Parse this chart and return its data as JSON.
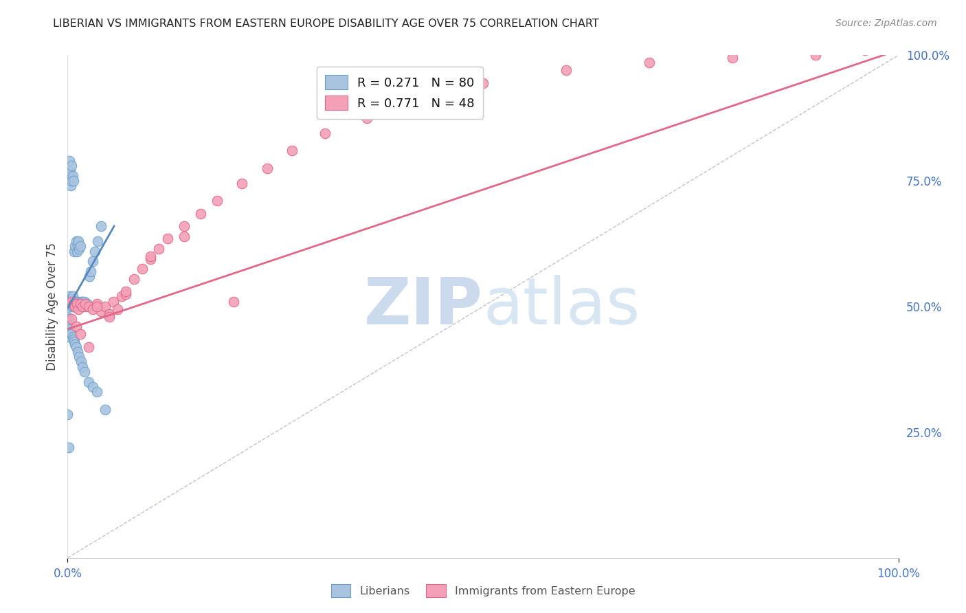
{
  "title": "LIBERIAN VS IMMIGRANTS FROM EASTERN EUROPE DISABILITY AGE OVER 75 CORRELATION CHART",
  "source": "Source: ZipAtlas.com",
  "ylabel": "Disability Age Over 75",
  "xlim": [
    0.0,
    1.0
  ],
  "ylim": [
    0.0,
    1.0
  ],
  "x_ticks": [
    0.0,
    1.0
  ],
  "x_tick_labels": [
    "0.0%",
    "100.0%"
  ],
  "y_tick_vals_right": [
    0.25,
    0.5,
    0.75,
    1.0
  ],
  "y_tick_labels_right": [
    "25.0%",
    "50.0%",
    "75.0%",
    "100.0%"
  ],
  "watermark_text": "ZIPatlas",
  "legend_line1": "R = 0.271   N = 80",
  "legend_line2": "R = 0.771   N = 48",
  "liberian_color": "#a8c4e0",
  "liberian_edge": "#6fa0cc",
  "eastern_europe_color": "#f4a0b8",
  "eastern_europe_edge": "#e06888",
  "liberian_trend_color": "#5588bb",
  "eastern_europe_trend_color": "#e06888",
  "diagonal_color": "#bbbbcc",
  "grid_color": "#dddddd",
  "background_color": "#ffffff",
  "liberian_x": [
    0.001,
    0.001,
    0.002,
    0.002,
    0.002,
    0.002,
    0.003,
    0.003,
    0.003,
    0.003,
    0.004,
    0.004,
    0.004,
    0.005,
    0.005,
    0.005,
    0.005,
    0.006,
    0.006,
    0.006,
    0.006,
    0.007,
    0.007,
    0.007,
    0.008,
    0.008,
    0.008,
    0.009,
    0.009,
    0.009,
    0.01,
    0.01,
    0.01,
    0.011,
    0.011,
    0.012,
    0.012,
    0.013,
    0.013,
    0.014,
    0.015,
    0.015,
    0.016,
    0.017,
    0.018,
    0.019,
    0.02,
    0.021,
    0.022,
    0.024,
    0.026,
    0.028,
    0.03,
    0.033,
    0.036,
    0.04,
    0.0,
    0.0,
    0.001,
    0.001,
    0.002,
    0.003,
    0.004,
    0.005,
    0.006,
    0.007,
    0.008,
    0.009,
    0.01,
    0.012,
    0.014,
    0.016,
    0.018,
    0.02,
    0.025,
    0.03,
    0.035,
    0.045,
    0.0,
    0.001
  ],
  "liberian_y": [
    0.51,
    0.76,
    0.51,
    0.52,
    0.76,
    0.79,
    0.505,
    0.515,
    0.76,
    0.77,
    0.5,
    0.51,
    0.74,
    0.505,
    0.515,
    0.75,
    0.78,
    0.5,
    0.51,
    0.52,
    0.76,
    0.505,
    0.51,
    0.75,
    0.5,
    0.51,
    0.61,
    0.505,
    0.51,
    0.62,
    0.5,
    0.51,
    0.63,
    0.505,
    0.61,
    0.5,
    0.62,
    0.51,
    0.63,
    0.615,
    0.505,
    0.62,
    0.51,
    0.505,
    0.51,
    0.5,
    0.51,
    0.505,
    0.5,
    0.505,
    0.56,
    0.57,
    0.59,
    0.61,
    0.63,
    0.66,
    0.48,
    0.44,
    0.475,
    0.465,
    0.46,
    0.455,
    0.45,
    0.445,
    0.44,
    0.435,
    0.43,
    0.425,
    0.42,
    0.41,
    0.4,
    0.39,
    0.38,
    0.37,
    0.35,
    0.34,
    0.33,
    0.295,
    0.285,
    0.22
  ],
  "eastern_europe_x": [
    0.005,
    0.007,
    0.009,
    0.011,
    0.013,
    0.015,
    0.018,
    0.021,
    0.025,
    0.03,
    0.035,
    0.04,
    0.045,
    0.05,
    0.055,
    0.06,
    0.065,
    0.07,
    0.08,
    0.09,
    0.1,
    0.11,
    0.12,
    0.14,
    0.16,
    0.18,
    0.21,
    0.24,
    0.27,
    0.31,
    0.36,
    0.42,
    0.5,
    0.6,
    0.7,
    0.8,
    0.9,
    0.96,
    0.005,
    0.01,
    0.015,
    0.025,
    0.035,
    0.05,
    0.07,
    0.1,
    0.14,
    0.2
  ],
  "eastern_europe_y": [
    0.51,
    0.505,
    0.5,
    0.505,
    0.495,
    0.505,
    0.5,
    0.505,
    0.5,
    0.495,
    0.505,
    0.49,
    0.5,
    0.485,
    0.51,
    0.495,
    0.52,
    0.525,
    0.555,
    0.575,
    0.595,
    0.615,
    0.635,
    0.66,
    0.685,
    0.71,
    0.745,
    0.775,
    0.81,
    0.845,
    0.875,
    0.91,
    0.945,
    0.97,
    0.985,
    0.995,
    1.0,
    1.01,
    0.475,
    0.46,
    0.445,
    0.42,
    0.5,
    0.48,
    0.53,
    0.6,
    0.64,
    0.51
  ],
  "liberian_trend_x": [
    0.0,
    0.056
  ],
  "liberian_trend_y": [
    0.497,
    0.66
  ],
  "eastern_europe_trend_x": [
    0.0,
    1.0
  ],
  "eastern_europe_trend_y": [
    0.455,
    1.01
  ]
}
